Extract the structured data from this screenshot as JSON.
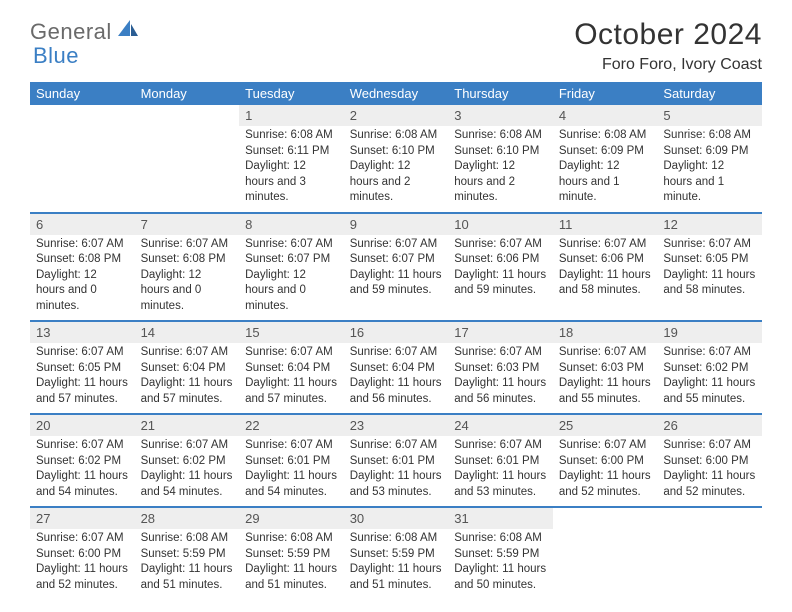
{
  "brand": {
    "name1": "General",
    "name2": "Blue"
  },
  "title": "October 2024",
  "location": "Foro Foro, Ivory Coast",
  "colors": {
    "header_bg": "#3b7fc4",
    "header_text": "#ffffff",
    "daynum_bg": "#eeeeee",
    "border": "#3b7fc4",
    "background": "#ffffff",
    "text": "#333333"
  },
  "typography": {
    "title_fontsize": 30,
    "location_fontsize": 16,
    "dayname_fontsize": 13,
    "body_fontsize": 11.5
  },
  "day_names": [
    "Sunday",
    "Monday",
    "Tuesday",
    "Wednesday",
    "Thursday",
    "Friday",
    "Saturday"
  ],
  "weeks": [
    [
      {
        "empty": true
      },
      {
        "empty": true
      },
      {
        "num": "1",
        "sunrise": "Sunrise: 6:08 AM",
        "sunset": "Sunset: 6:11 PM",
        "daylight": "Daylight: 12 hours and 3 minutes."
      },
      {
        "num": "2",
        "sunrise": "Sunrise: 6:08 AM",
        "sunset": "Sunset: 6:10 PM",
        "daylight": "Daylight: 12 hours and 2 minutes."
      },
      {
        "num": "3",
        "sunrise": "Sunrise: 6:08 AM",
        "sunset": "Sunset: 6:10 PM",
        "daylight": "Daylight: 12 hours and 2 minutes."
      },
      {
        "num": "4",
        "sunrise": "Sunrise: 6:08 AM",
        "sunset": "Sunset: 6:09 PM",
        "daylight": "Daylight: 12 hours and 1 minute."
      },
      {
        "num": "5",
        "sunrise": "Sunrise: 6:08 AM",
        "sunset": "Sunset: 6:09 PM",
        "daylight": "Daylight: 12 hours and 1 minute."
      }
    ],
    [
      {
        "num": "6",
        "sunrise": "Sunrise: 6:07 AM",
        "sunset": "Sunset: 6:08 PM",
        "daylight": "Daylight: 12 hours and 0 minutes."
      },
      {
        "num": "7",
        "sunrise": "Sunrise: 6:07 AM",
        "sunset": "Sunset: 6:08 PM",
        "daylight": "Daylight: 12 hours and 0 minutes."
      },
      {
        "num": "8",
        "sunrise": "Sunrise: 6:07 AM",
        "sunset": "Sunset: 6:07 PM",
        "daylight": "Daylight: 12 hours and 0 minutes."
      },
      {
        "num": "9",
        "sunrise": "Sunrise: 6:07 AM",
        "sunset": "Sunset: 6:07 PM",
        "daylight": "Daylight: 11 hours and 59 minutes."
      },
      {
        "num": "10",
        "sunrise": "Sunrise: 6:07 AM",
        "sunset": "Sunset: 6:06 PM",
        "daylight": "Daylight: 11 hours and 59 minutes."
      },
      {
        "num": "11",
        "sunrise": "Sunrise: 6:07 AM",
        "sunset": "Sunset: 6:06 PM",
        "daylight": "Daylight: 11 hours and 58 minutes."
      },
      {
        "num": "12",
        "sunrise": "Sunrise: 6:07 AM",
        "sunset": "Sunset: 6:05 PM",
        "daylight": "Daylight: 11 hours and 58 minutes."
      }
    ],
    [
      {
        "num": "13",
        "sunrise": "Sunrise: 6:07 AM",
        "sunset": "Sunset: 6:05 PM",
        "daylight": "Daylight: 11 hours and 57 minutes."
      },
      {
        "num": "14",
        "sunrise": "Sunrise: 6:07 AM",
        "sunset": "Sunset: 6:04 PM",
        "daylight": "Daylight: 11 hours and 57 minutes."
      },
      {
        "num": "15",
        "sunrise": "Sunrise: 6:07 AM",
        "sunset": "Sunset: 6:04 PM",
        "daylight": "Daylight: 11 hours and 57 minutes."
      },
      {
        "num": "16",
        "sunrise": "Sunrise: 6:07 AM",
        "sunset": "Sunset: 6:04 PM",
        "daylight": "Daylight: 11 hours and 56 minutes."
      },
      {
        "num": "17",
        "sunrise": "Sunrise: 6:07 AM",
        "sunset": "Sunset: 6:03 PM",
        "daylight": "Daylight: 11 hours and 56 minutes."
      },
      {
        "num": "18",
        "sunrise": "Sunrise: 6:07 AM",
        "sunset": "Sunset: 6:03 PM",
        "daylight": "Daylight: 11 hours and 55 minutes."
      },
      {
        "num": "19",
        "sunrise": "Sunrise: 6:07 AM",
        "sunset": "Sunset: 6:02 PM",
        "daylight": "Daylight: 11 hours and 55 minutes."
      }
    ],
    [
      {
        "num": "20",
        "sunrise": "Sunrise: 6:07 AM",
        "sunset": "Sunset: 6:02 PM",
        "daylight": "Daylight: 11 hours and 54 minutes."
      },
      {
        "num": "21",
        "sunrise": "Sunrise: 6:07 AM",
        "sunset": "Sunset: 6:02 PM",
        "daylight": "Daylight: 11 hours and 54 minutes."
      },
      {
        "num": "22",
        "sunrise": "Sunrise: 6:07 AM",
        "sunset": "Sunset: 6:01 PM",
        "daylight": "Daylight: 11 hours and 54 minutes."
      },
      {
        "num": "23",
        "sunrise": "Sunrise: 6:07 AM",
        "sunset": "Sunset: 6:01 PM",
        "daylight": "Daylight: 11 hours and 53 minutes."
      },
      {
        "num": "24",
        "sunrise": "Sunrise: 6:07 AM",
        "sunset": "Sunset: 6:01 PM",
        "daylight": "Daylight: 11 hours and 53 minutes."
      },
      {
        "num": "25",
        "sunrise": "Sunrise: 6:07 AM",
        "sunset": "Sunset: 6:00 PM",
        "daylight": "Daylight: 11 hours and 52 minutes."
      },
      {
        "num": "26",
        "sunrise": "Sunrise: 6:07 AM",
        "sunset": "Sunset: 6:00 PM",
        "daylight": "Daylight: 11 hours and 52 minutes."
      }
    ],
    [
      {
        "num": "27",
        "sunrise": "Sunrise: 6:07 AM",
        "sunset": "Sunset: 6:00 PM",
        "daylight": "Daylight: 11 hours and 52 minutes."
      },
      {
        "num": "28",
        "sunrise": "Sunrise: 6:08 AM",
        "sunset": "Sunset: 5:59 PM",
        "daylight": "Daylight: 11 hours and 51 minutes."
      },
      {
        "num": "29",
        "sunrise": "Sunrise: 6:08 AM",
        "sunset": "Sunset: 5:59 PM",
        "daylight": "Daylight: 11 hours and 51 minutes."
      },
      {
        "num": "30",
        "sunrise": "Sunrise: 6:08 AM",
        "sunset": "Sunset: 5:59 PM",
        "daylight": "Daylight: 11 hours and 51 minutes."
      },
      {
        "num": "31",
        "sunrise": "Sunrise: 6:08 AM",
        "sunset": "Sunset: 5:59 PM",
        "daylight": "Daylight: 11 hours and 50 minutes."
      },
      {
        "empty": true
      },
      {
        "empty": true
      }
    ]
  ]
}
